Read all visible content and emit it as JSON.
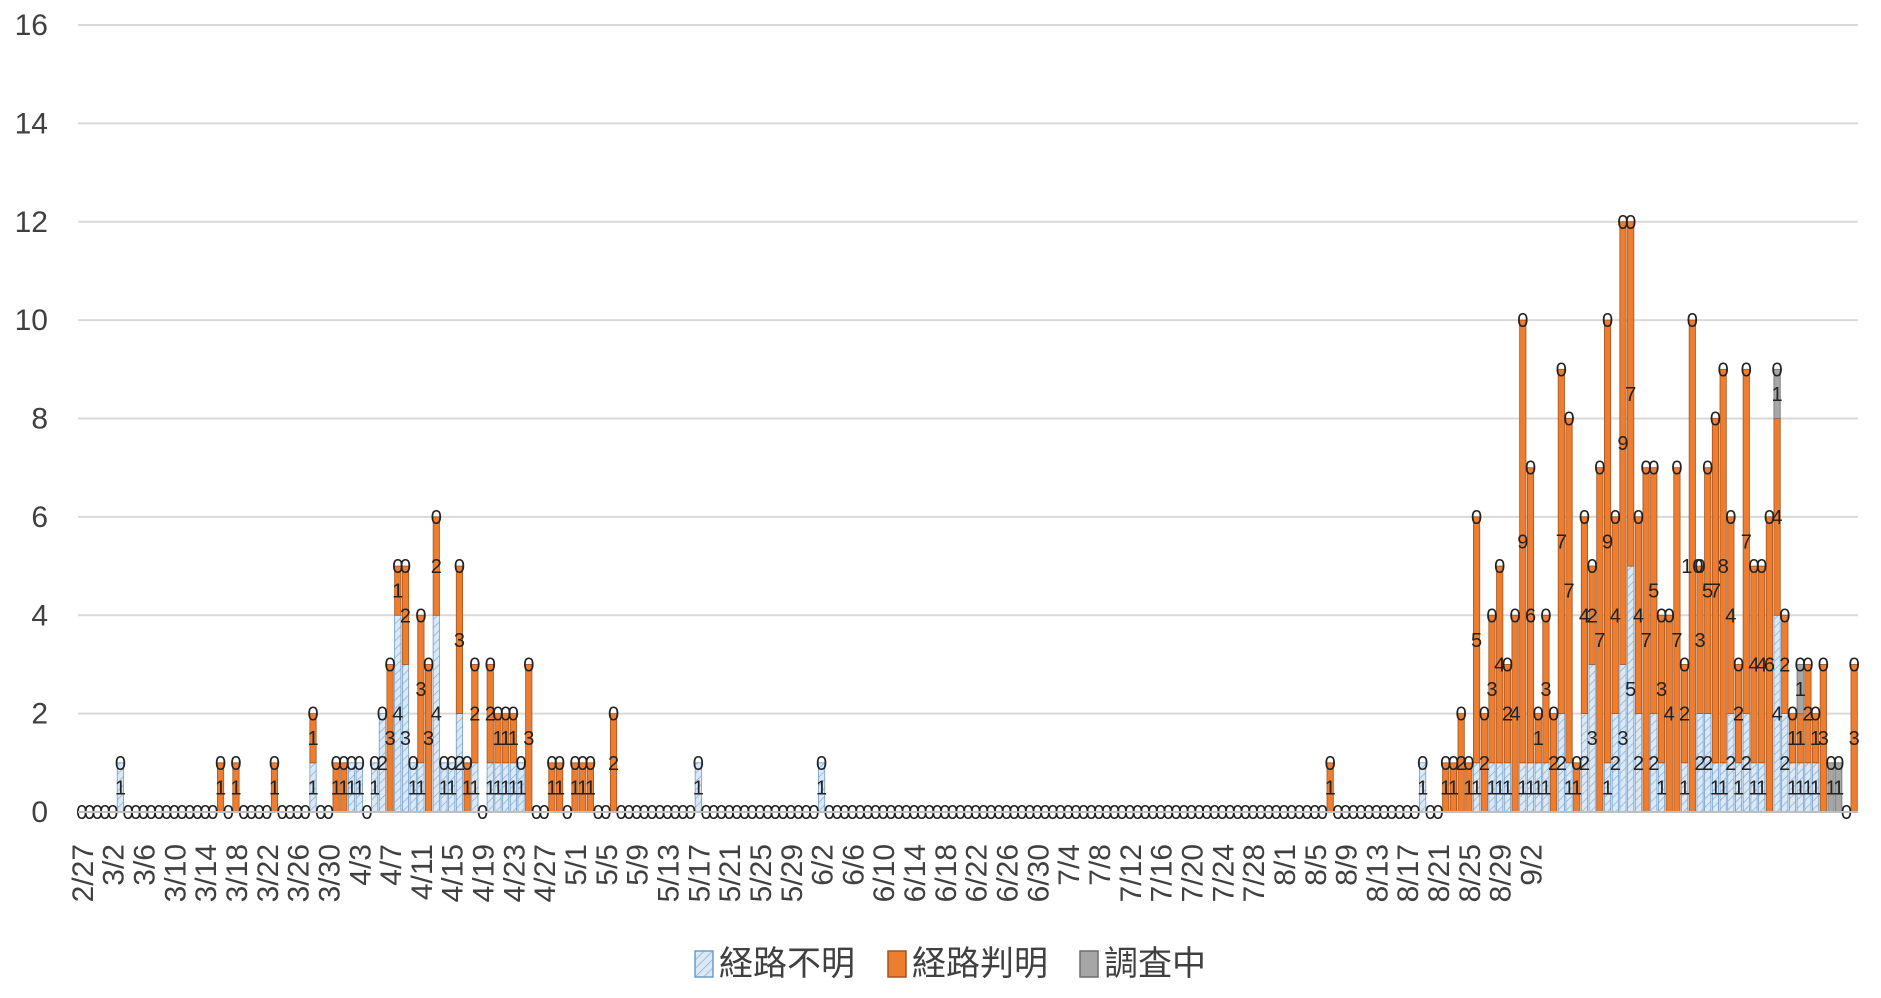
{
  "chart_data": {
    "type": "bar",
    "stacked": true,
    "grid": true,
    "legend_position": "bottom",
    "ylim": [
      0,
      16
    ],
    "y_ticks": [
      0,
      2,
      4,
      6,
      8,
      10,
      12,
      14,
      16
    ],
    "start_date": "2/27",
    "x_tick_labels": [
      "2/27",
      "3/2",
      "3/6",
      "3/10",
      "3/14",
      "3/18",
      "3/22",
      "3/26",
      "3/30",
      "4/3",
      "4/7",
      "4/11",
      "4/15",
      "4/19",
      "4/23",
      "4/27",
      "5/1",
      "5/5",
      "5/9",
      "5/13",
      "5/17",
      "5/21",
      "5/25",
      "5/29",
      "6/2",
      "6/6",
      "6/10",
      "6/14",
      "6/18",
      "6/22",
      "6/26",
      "6/30",
      "7/4",
      "7/8",
      "7/12",
      "7/16",
      "7/20",
      "7/24",
      "7/28",
      "8/1",
      "8/5",
      "8/9",
      "8/13",
      "8/17",
      "8/21",
      "8/25",
      "8/29",
      "9/2"
    ],
    "series": [
      {
        "name": "経路不明",
        "color": "#dbe9f6",
        "pattern": "hatch",
        "values": [
          0,
          0,
          0,
          0,
          0,
          1,
          0,
          0,
          0,
          0,
          0,
          0,
          0,
          0,
          0,
          0,
          0,
          0,
          0,
          0,
          0,
          0,
          0,
          0,
          0,
          0,
          0,
          0,
          0,
          0,
          1,
          0,
          0,
          0,
          0,
          1,
          1,
          0,
          1,
          2,
          0,
          4,
          3,
          1,
          1,
          0,
          4,
          1,
          1,
          2,
          0,
          1,
          0,
          1,
          1,
          1,
          1,
          1,
          0,
          0,
          0,
          0,
          0,
          0,
          0,
          0,
          0,
          0,
          0,
          0,
          0,
          0,
          0,
          0,
          0,
          0,
          0,
          0,
          0,
          0,
          1,
          0,
          0,
          0,
          0,
          0,
          0,
          0,
          0,
          0,
          0,
          0,
          0,
          0,
          0,
          0,
          1,
          0,
          0,
          0,
          0,
          0,
          0,
          0,
          0,
          0,
          0,
          0,
          0,
          0,
          0,
          0,
          0,
          0,
          0,
          0,
          0,
          0,
          0,
          0,
          0,
          0,
          0,
          0,
          0,
          0,
          0,
          0,
          0,
          0,
          0,
          0,
          0,
          0,
          0,
          0,
          0,
          0,
          0,
          0,
          0,
          0,
          0,
          0,
          0,
          0,
          0,
          0,
          0,
          0,
          0,
          0,
          0,
          0,
          0,
          0,
          0,
          0,
          0,
          0,
          0,
          0,
          0,
          0,
          0,
          0,
          0,
          0,
          0,
          0,
          0,
          0,
          0,
          0,
          1,
          0,
          0,
          0,
          0,
          0,
          0,
          1,
          0,
          1,
          1,
          1,
          0,
          1,
          1,
          1,
          1,
          0,
          2,
          1,
          0,
          2,
          3,
          0,
          1,
          2,
          3,
          5,
          2,
          0,
          2,
          1,
          0,
          0,
          1,
          0,
          2,
          2,
          1,
          1,
          2,
          1,
          2,
          1,
          1,
          0,
          4,
          2,
          1,
          1,
          1,
          1,
          0,
          0,
          0,
          0,
          0
        ]
      },
      {
        "name": "経路判明",
        "color": "#ed7d31",
        "values": [
          0,
          0,
          0,
          0,
          0,
          0,
          0,
          0,
          0,
          0,
          0,
          0,
          0,
          0,
          0,
          0,
          0,
          0,
          1,
          0,
          1,
          0,
          0,
          0,
          0,
          1,
          0,
          0,
          0,
          0,
          1,
          0,
          0,
          1,
          1,
          0,
          0,
          0,
          0,
          0,
          3,
          1,
          2,
          0,
          3,
          3,
          2,
          0,
          0,
          3,
          1,
          2,
          0,
          2,
          1,
          1,
          1,
          0,
          3,
          0,
          0,
          1,
          1,
          0,
          1,
          1,
          1,
          0,
          0,
          2,
          0,
          0,
          0,
          0,
          0,
          0,
          0,
          0,
          0,
          0,
          0,
          0,
          0,
          0,
          0,
          0,
          0,
          0,
          0,
          0,
          0,
          0,
          0,
          0,
          0,
          0,
          0,
          0,
          0,
          0,
          0,
          0,
          0,
          0,
          0,
          0,
          0,
          0,
          0,
          0,
          0,
          0,
          0,
          0,
          0,
          0,
          0,
          0,
          0,
          0,
          0,
          0,
          0,
          0,
          0,
          0,
          0,
          0,
          0,
          0,
          0,
          0,
          0,
          0,
          0,
          0,
          0,
          0,
          0,
          0,
          0,
          0,
          0,
          0,
          0,
          0,
          0,
          0,
          0,
          0,
          0,
          0,
          0,
          0,
          0,
          0,
          0,
          0,
          0,
          0,
          0,
          0,
          1,
          0,
          0,
          0,
          0,
          0,
          0,
          0,
          0,
          0,
          0,
          0,
          0,
          0,
          0,
          1,
          1,
          2,
          1,
          5,
          2,
          3,
          4,
          2,
          4,
          9,
          6,
          1,
          3,
          2,
          7,
          7,
          1,
          4,
          2,
          7,
          9,
          4,
          9,
          7,
          4,
          7,
          5,
          3,
          4,
          7,
          2,
          10,
          3,
          5,
          7,
          8,
          4,
          2,
          7,
          4,
          4,
          6,
          4,
          2,
          1,
          1,
          2,
          1,
          3,
          0,
          0,
          0,
          3,
          1,
          0
        ]
      },
      {
        "name": "調査中",
        "color": "#a6a6a6",
        "values": [
          0,
          0,
          0,
          0,
          0,
          0,
          0,
          0,
          0,
          0,
          0,
          0,
          0,
          0,
          0,
          0,
          0,
          0,
          0,
          0,
          0,
          0,
          0,
          0,
          0,
          0,
          0,
          0,
          0,
          0,
          0,
          0,
          0,
          0,
          0,
          0,
          0,
          0,
          0,
          0,
          0,
          0,
          0,
          0,
          0,
          0,
          0,
          0,
          0,
          0,
          0,
          0,
          0,
          0,
          0,
          0,
          0,
          0,
          0,
          0,
          0,
          0,
          0,
          0,
          0,
          0,
          0,
          0,
          0,
          0,
          0,
          0,
          0,
          0,
          0,
          0,
          0,
          0,
          0,
          0,
          0,
          0,
          0,
          0,
          0,
          0,
          0,
          0,
          0,
          0,
          0,
          0,
          0,
          0,
          0,
          0,
          0,
          0,
          0,
          0,
          0,
          0,
          0,
          0,
          0,
          0,
          0,
          0,
          0,
          0,
          0,
          0,
          0,
          0,
          0,
          0,
          0,
          0,
          0,
          0,
          0,
          0,
          0,
          0,
          0,
          0,
          0,
          0,
          0,
          0,
          0,
          0,
          0,
          0,
          0,
          0,
          0,
          0,
          0,
          0,
          0,
          0,
          0,
          0,
          0,
          0,
          0,
          0,
          0,
          0,
          0,
          0,
          0,
          0,
          0,
          0,
          0,
          0,
          0,
          0,
          0,
          0,
          0,
          0,
          0,
          0,
          0,
          0,
          0,
          0,
          0,
          0,
          0,
          0,
          0,
          0,
          0,
          0,
          0,
          0,
          0,
          0,
          0,
          0,
          0,
          0,
          0,
          0,
          0,
          0,
          0,
          0,
          0,
          0,
          0,
          0,
          0,
          0,
          0,
          0,
          0,
          0,
          0,
          0,
          0,
          0,
          0,
          0,
          0,
          0,
          0,
          0,
          0,
          0,
          0,
          0,
          0,
          0,
          0,
          0,
          1,
          0,
          0,
          1,
          0,
          0,
          0,
          1,
          1,
          0,
          0,
          0,
          1
        ]
      }
    ]
  }
}
